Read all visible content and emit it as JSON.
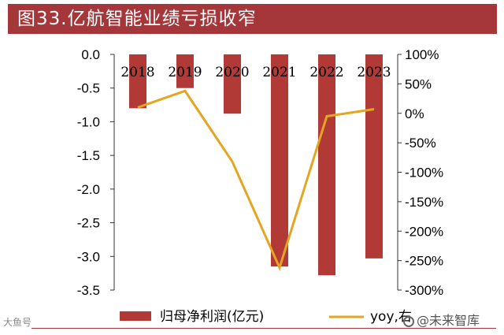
{
  "title": "图33.亿航智能业绩亏损收窄",
  "watermark_left": "大鱼号",
  "watermark_right": "@未来智库",
  "colors": {
    "bar": "#b13a37",
    "line": "#e5a520",
    "title_bg": "#a5373a"
  },
  "chart_data": {
    "type": "bar",
    "categories": [
      "2018",
      "2019",
      "2020",
      "2021",
      "2022",
      "2023"
    ],
    "series": [
      {
        "name": "归母净利润(亿元)",
        "type": "bar",
        "axis": "left",
        "values": [
          -0.8,
          -0.5,
          -0.88,
          -3.15,
          -3.28,
          -3.03
        ]
      },
      {
        "name": "yoy,右",
        "type": "line",
        "axis": "right",
        "values": [
          10,
          38,
          -82,
          -262,
          -5,
          7
        ]
      }
    ],
    "y_left": {
      "min": -3.5,
      "max": 0.0,
      "ticks": [
        "0.0",
        "-0.5",
        "-1.0",
        "-1.5",
        "-2.0",
        "-2.5",
        "-3.0",
        "-3.5"
      ]
    },
    "y_right": {
      "min": -300,
      "max": 100,
      "ticks": [
        "100%",
        "50%",
        "0%",
        "-50%",
        "-100%",
        "-150%",
        "-200%",
        "-250%",
        "-300%"
      ]
    },
    "legend": {
      "position": "bottom"
    },
    "grid": false
  }
}
